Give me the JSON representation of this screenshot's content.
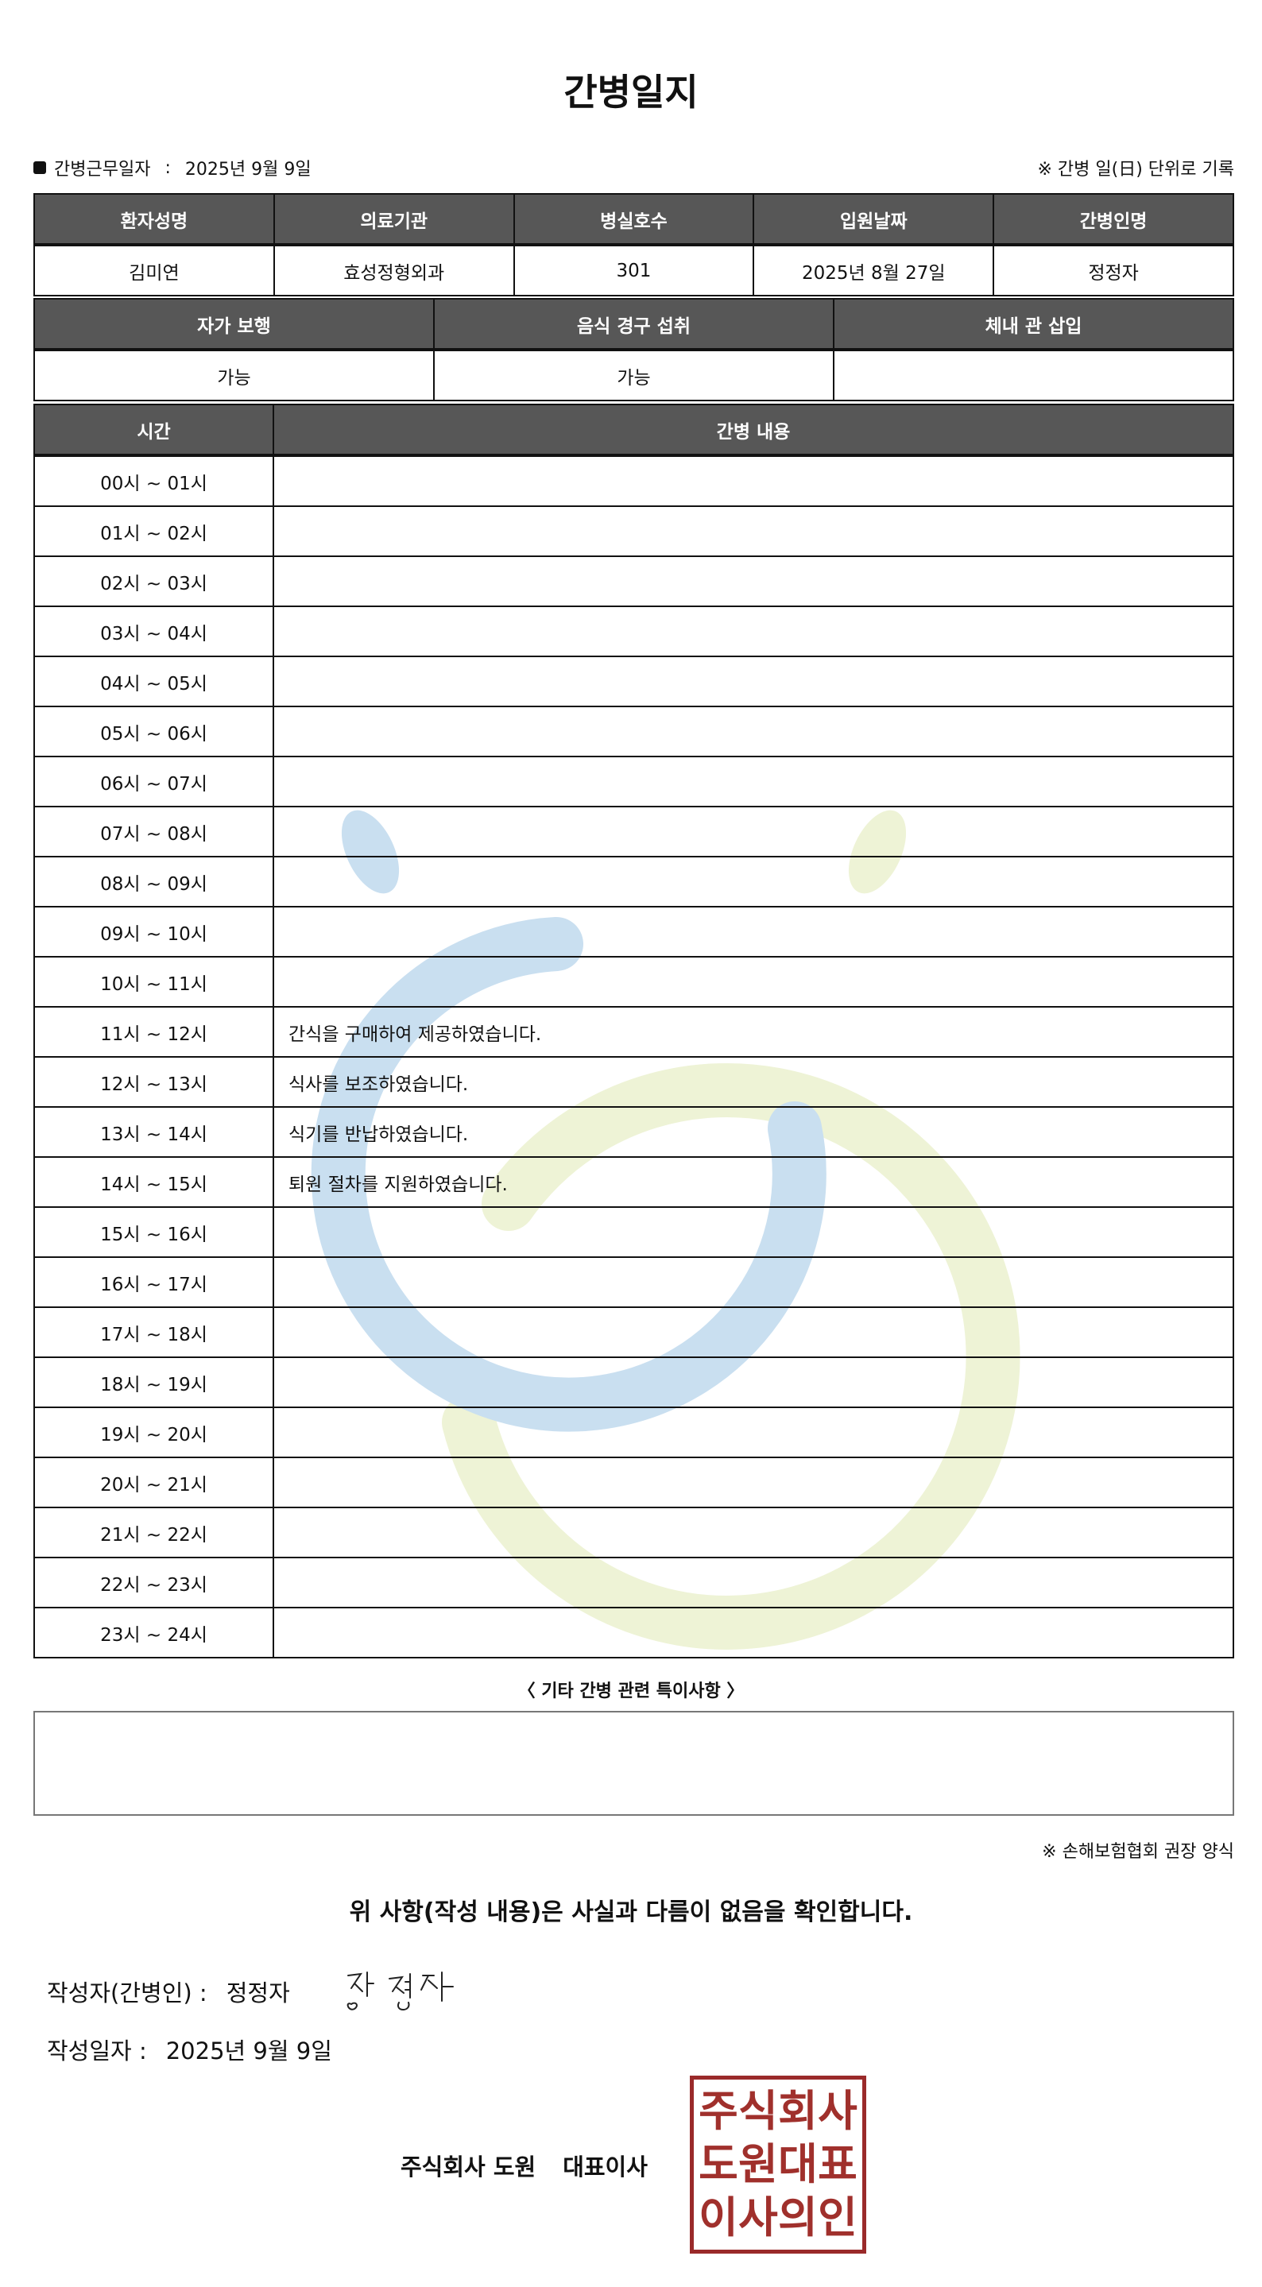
{
  "title": "간병일지",
  "work_date_label": "간병근무일자",
  "work_date_sep": ":",
  "work_date": "2025년 9월 9일",
  "record_note": "※ 간병 일(日) 단위로 기록",
  "patient_table": {
    "headers": [
      "환자성명",
      "의료기관",
      "병실호수",
      "입원날짜",
      "간병인명"
    ],
    "values": [
      "김미연",
      "효성정형외과",
      "301",
      "2025년 8월 27일",
      "정정자"
    ]
  },
  "status_table": {
    "headers": [
      "자가 보행",
      "음식 경구 섭취",
      "체내 관 삽입"
    ],
    "values": [
      "가능",
      "가능",
      ""
    ]
  },
  "care_table": {
    "headers": [
      "시간",
      "간병 내용"
    ],
    "rows": [
      {
        "time": "00시 ~ 01시",
        "content": ""
      },
      {
        "time": "01시 ~ 02시",
        "content": ""
      },
      {
        "time": "02시 ~ 03시",
        "content": ""
      },
      {
        "time": "03시 ~ 04시",
        "content": ""
      },
      {
        "time": "04시 ~ 05시",
        "content": ""
      },
      {
        "time": "05시 ~ 06시",
        "content": ""
      },
      {
        "time": "06시 ~ 07시",
        "content": ""
      },
      {
        "time": "07시 ~ 08시",
        "content": ""
      },
      {
        "time": "08시 ~ 09시",
        "content": ""
      },
      {
        "time": "09시 ~ 10시",
        "content": ""
      },
      {
        "time": "10시 ~ 11시",
        "content": ""
      },
      {
        "time": "11시 ~ 12시",
        "content": "간식을 구매하여 제공하였습니다."
      },
      {
        "time": "12시 ~ 13시",
        "content": "식사를 보조하였습니다."
      },
      {
        "time": "13시 ~ 14시",
        "content": "식기를 반납하였습니다."
      },
      {
        "time": "14시 ~ 15시",
        "content": "퇴원 절차를 지원하였습니다."
      },
      {
        "time": "15시 ~ 16시",
        "content": ""
      },
      {
        "time": "16시 ~ 17시",
        "content": ""
      },
      {
        "time": "17시 ~ 18시",
        "content": ""
      },
      {
        "time": "18시 ~ 19시",
        "content": ""
      },
      {
        "time": "19시 ~ 20시",
        "content": ""
      },
      {
        "time": "20시 ~ 21시",
        "content": ""
      },
      {
        "time": "21시 ~ 22시",
        "content": ""
      },
      {
        "time": "22시 ~ 23시",
        "content": ""
      },
      {
        "time": "23시 ~ 24시",
        "content": ""
      }
    ]
  },
  "special_notes_label": "〈 기타 간병 관련 특이사항 〉",
  "special_notes": "",
  "form_note": "※ 손해보험협회 권장 양식",
  "confirmation": "위 사항(작성 내용)은 사실과 다름이 없음을 확인합니다.",
  "author_label": "작성자(간병인) :",
  "author_name": "정정자",
  "signature": "정정자",
  "written_date_label": "작성일자 :",
  "written_date": "2025년 9월 9일",
  "company_name": "주식회사 도원",
  "company_title": "대표이사",
  "stamp_text": "주식회사도원대표이사의인",
  "colors": {
    "header_bg": "#575757",
    "stamp": "#a0302c",
    "watermark_blue": "#c9dff0",
    "watermark_green": "#eef3d6"
  }
}
